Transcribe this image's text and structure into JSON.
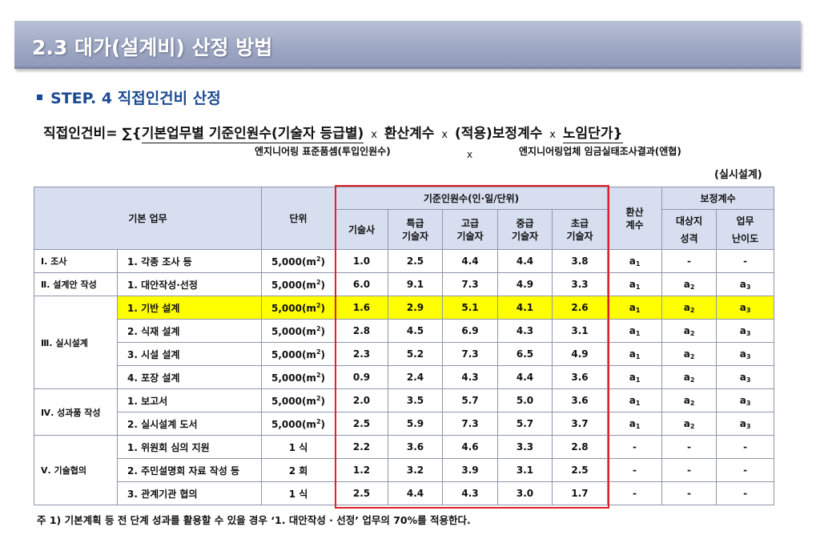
{
  "title": "2.3 대가(설계비) 산정 방법",
  "step": "STEP. 4 직접인건비 산정",
  "formula": {
    "lhs": "직접인건비=",
    "sigma": "∑{",
    "part1": "기본업무별 기준인원수(기술자 등급별)",
    "x1": "x",
    "part2": "환산계수",
    "x2": "x",
    "part3": "(적용)보정계수",
    "x3": "x",
    "part4": "노임단가}"
  },
  "sub_labels": {
    "left": "엔지니어링 표준품셈(투입인원수)",
    "x": "x",
    "right": "엔지니어링업체 임금실태조사결과(엔협)"
  },
  "note_right": "(실시설계)",
  "table": {
    "headers": {
      "basic_task": "기본 업무",
      "unit": "단위",
      "personnel_group": "기준인원수(인·일/단위)",
      "grades": [
        "기술사",
        "특급\n기술자",
        "고급\n기술자",
        "중급\n기술자",
        "초급\n기술자"
      ],
      "conversion": "환산\n계수",
      "correction_group": "보정계수",
      "corrections": [
        "대상지\n성격",
        "업무\n난이도"
      ]
    },
    "rows": [
      {
        "cat": "Ⅰ. 조사",
        "task": "1. 각종 조사 등",
        "unit": "5,000(m",
        "unit_sup": "2",
        "unit_tail": ")",
        "vals": [
          "1.0",
          "2.5",
          "4.4",
          "4.4",
          "3.8"
        ],
        "conv": "a",
        "conv_sub": "1",
        "c1": "-",
        "c1_sub": "",
        "c2": "-",
        "c2_sub": ""
      },
      {
        "cat": "Ⅱ. 설계안 작성",
        "task": "1. 대안작성·선정",
        "unit": "5,000(m",
        "unit_sup": "2",
        "unit_tail": ")",
        "vals": [
          "6.0",
          "9.1",
          "7.3",
          "4.9",
          "3.3"
        ],
        "conv": "a",
        "conv_sub": "1",
        "c1": "a",
        "c1_sub": "2",
        "c2": "a",
        "c2_sub": "3"
      },
      {
        "cat": "Ⅲ. 실시설계",
        "task": "1. 기반 설계",
        "unit": "5,000(m",
        "unit_sup": "2",
        "unit_tail": ")",
        "vals": [
          "1.6",
          "2.9",
          "5.1",
          "4.1",
          "2.6"
        ],
        "conv": "a",
        "conv_sub": "1",
        "c1": "a",
        "c1_sub": "2",
        "c2": "a",
        "c2_sub": "3"
      },
      {
        "cat": "",
        "task": "2. 식재 설계",
        "unit": "5,000(m",
        "unit_sup": "2",
        "unit_tail": ")",
        "vals": [
          "2.8",
          "4.5",
          "6.9",
          "4.3",
          "3.1"
        ],
        "conv": "a",
        "conv_sub": "1",
        "c1": "a",
        "c1_sub": "2",
        "c2": "a",
        "c2_sub": "3"
      },
      {
        "cat": "",
        "task": "3. 시설 설계",
        "unit": "5,000(m",
        "unit_sup": "2",
        "unit_tail": ")",
        "vals": [
          "2.3",
          "5.2",
          "7.3",
          "6.5",
          "4.9"
        ],
        "conv": "a",
        "conv_sub": "1",
        "c1": "a",
        "c1_sub": "2",
        "c2": "a",
        "c2_sub": "3"
      },
      {
        "cat": "",
        "task": "4. 포장 설계",
        "unit": "5,000(m",
        "unit_sup": "2",
        "unit_tail": ")",
        "vals": [
          "0.9",
          "2.4",
          "4.3",
          "4.4",
          "3.6"
        ],
        "conv": "a",
        "conv_sub": "1",
        "c1": "a",
        "c1_sub": "2",
        "c2": "a",
        "c2_sub": "3"
      },
      {
        "cat": "Ⅳ. 성과품 작성",
        "task": "1. 보고서",
        "unit": "5,000(m",
        "unit_sup": "2",
        "unit_tail": ")",
        "vals": [
          "2.0",
          "3.5",
          "5.7",
          "5.0",
          "3.6"
        ],
        "conv": "a",
        "conv_sub": "1",
        "c1": "a",
        "c1_sub": "2",
        "c2": "a",
        "c2_sub": "3"
      },
      {
        "cat": "",
        "task": "2. 실시설계 도서",
        "unit": "5,000(m",
        "unit_sup": "2",
        "unit_tail": ")",
        "vals": [
          "2.5",
          "5.9",
          "7.3",
          "5.7",
          "3.7"
        ],
        "conv": "a",
        "conv_sub": "1",
        "c1": "a",
        "c1_sub": "2",
        "c2": "a",
        "c2_sub": "3"
      },
      {
        "cat": "Ⅴ. 기술협의",
        "task": "1. 위원회 심의 지원",
        "unit": "1 식",
        "unit_sup": "",
        "unit_tail": "",
        "vals": [
          "2.2",
          "3.6",
          "4.6",
          "3.3",
          "2.8"
        ],
        "conv": "-",
        "conv_sub": "",
        "c1": "-",
        "c1_sub": "",
        "c2": "-",
        "c2_sub": ""
      },
      {
        "cat": "",
        "task": "2. 주민설명회 자료 작성 등",
        "unit": "2 회",
        "unit_sup": "",
        "unit_tail": "",
        "vals": [
          "1.2",
          "3.2",
          "3.9",
          "3.1",
          "2.5"
        ],
        "conv": "-",
        "conv_sub": "",
        "c1": "-",
        "c1_sub": "",
        "c2": "-",
        "c2_sub": ""
      },
      {
        "cat": "",
        "task": "3. 관계기관 협의",
        "unit": "1 식",
        "unit_sup": "",
        "unit_tail": "",
        "vals": [
          "2.5",
          "4.4",
          "4.3",
          "3.0",
          "1.7"
        ],
        "conv": "-",
        "conv_sub": "",
        "c1": "-",
        "c1_sub": "",
        "c2": "-",
        "c2_sub": ""
      }
    ]
  },
  "footnote": "주 1) 기본계획 등 전 단계 성과를 활용할 수 있을 경우  ‘1. 대안작성 · 선정’  업무의 70%를 적용한다.",
  "colors": {
    "highlight": "#ffff00",
    "red_box": "#e0202a",
    "header_bg": "#d7def0",
    "step_blue": "#1c4b93"
  }
}
